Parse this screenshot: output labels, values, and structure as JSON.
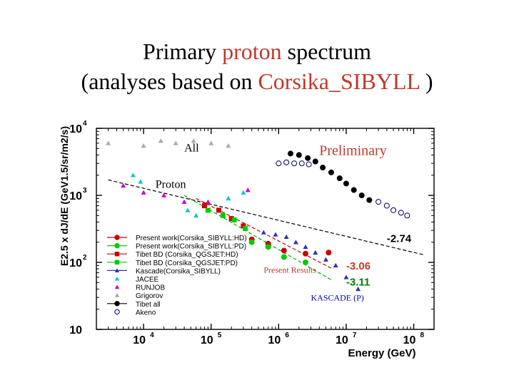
{
  "title": {
    "line1_prefix": "Primary ",
    "line1_accent": "proton",
    "line1_suffix": " spectrum",
    "line2_prefix": "(analyses based on ",
    "line2_accent": "Corsika_SIBYLL",
    "line2_suffix": " )"
  },
  "colors": {
    "accent": "#c0392b"
  },
  "chart_data": {
    "type": "scatter",
    "xlabel": "Energy (GeV)",
    "ylabel": "E2.5 x dJ/dE (GeV1.5/sr/m2/s)",
    "xscale": "log",
    "yscale": "log",
    "xlim": [
      2000,
      200000000
    ],
    "ylim": [
      10,
      10000
    ],
    "x_ticks": [
      {
        "value": 10000,
        "base": "10",
        "exp": "4"
      },
      {
        "value": 100000,
        "base": "10",
        "exp": "5"
      },
      {
        "value": 1000000,
        "base": "10",
        "exp": "6"
      },
      {
        "value": 10000000,
        "base": "10",
        "exp": "7"
      },
      {
        "value": 100000000,
        "base": "10",
        "exp": "8"
      }
    ],
    "y_ticks": [
      {
        "value": 10,
        "base": "10",
        "exp": ""
      },
      {
        "value": 100,
        "base": "10",
        "exp": "2"
      },
      {
        "value": 1000,
        "base": "10",
        "exp": "3"
      },
      {
        "value": 10000,
        "base": "10",
        "exp": "4"
      }
    ],
    "annotations": [
      {
        "text": "All",
        "x": 40000,
        "y": 4500,
        "color": "#000000"
      },
      {
        "text": "Preliminary",
        "x": 4000000,
        "y": 4000,
        "color": "#c0392b"
      },
      {
        "text": "Proton",
        "x": 15000,
        "y": 1300,
        "color": "#000000"
      },
      {
        "text": "-2.74",
        "x": 40000000,
        "y": 200,
        "color": "#000000"
      },
      {
        "text": "Present Results",
        "x": 600000,
        "y": 70,
        "color": "#c0392b"
      },
      {
        "text": "-3.06",
        "x": 10000000,
        "y": 78,
        "color": "#c0392b"
      },
      {
        "text": "-3.11",
        "x": 10000000,
        "y": 45,
        "color": "#008000"
      },
      {
        "text": "KASCADE (P)",
        "x": 3000000,
        "y": 27,
        "color": "#0000cc"
      }
    ],
    "fit_lines": [
      {
        "label": "-2.74",
        "color": "#000000",
        "dash": "5,3",
        "points": [
          [
            3000,
            1700
          ],
          [
            140000000,
            130
          ]
        ]
      },
      {
        "label": "-3.06",
        "color": "#cc0000",
        "dash": "5,3",
        "points": [
          [
            60000,
            900
          ],
          [
            6000000,
            82
          ]
        ]
      },
      {
        "label": "-3.11",
        "color": "#00aa00",
        "dash": "5,3",
        "points": [
          [
            40000,
            1000
          ],
          [
            6000000,
            55
          ]
        ]
      }
    ],
    "legend": {
      "placement": "bottom-left",
      "entries": [
        {
          "label": "Present work(Corsika_SIBYLL:HD)",
          "color": "#cc0000",
          "marker": "circle",
          "line": true
        },
        {
          "label": "Present work(Corsika_SIBYLL:PD)",
          "color": "#00cc00",
          "marker": "circle",
          "line": true
        },
        {
          "label": "Tibet BD (Corsika_QGSJET:HD)",
          "color": "#cc0000",
          "marker": "square",
          "line": true
        },
        {
          "label": "Tibet BD (Corsika_QGSJET:PD)",
          "color": "#00cc00",
          "marker": "square",
          "line": true
        },
        {
          "label": "Kascade(Corsika_SIBYLL)",
          "color": "#3333aa",
          "marker": "triangle",
          "line": true
        },
        {
          "label": "JACEE",
          "color": "#00cccc",
          "marker": "triangle",
          "line": false
        },
        {
          "label": "RUNJOB",
          "color": "#cc00cc",
          "marker": "triangle",
          "line": false
        },
        {
          "label": "Grigorov",
          "color": "#aaaaaa",
          "marker": "triangle",
          "line": false
        },
        {
          "label": "Tibet all",
          "color": "#000000",
          "marker": "circle",
          "line": true
        },
        {
          "label": "Akeno",
          "color": "#000066",
          "marker": "open-circle",
          "line": false
        }
      ]
    },
    "series": [
      {
        "name": "Grigorov",
        "color": "#aaaaaa",
        "marker": "triangle",
        "x": [
          3000,
          10000,
          18000,
          30000,
          55000,
          100000,
          180000
        ],
        "y": [
          6000,
          5500,
          6500,
          6000,
          6500,
          6000,
          5500
        ]
      },
      {
        "name": "Tibet all",
        "color": "#000000",
        "marker": "circle",
        "x": [
          1500000,
          2000000,
          2700000,
          3500000,
          4500000,
          6000000,
          8000000,
          10000000,
          13000000,
          17000000,
          22000000
        ],
        "y": [
          4200,
          4000,
          3600,
          3200,
          2600,
          2200,
          1800,
          1500,
          1200,
          1000,
          850
        ]
      },
      {
        "name": "Akeno",
        "color": "#000066",
        "marker": "open-circle",
        "x": [
          1000000,
          1300000,
          1700000,
          2200000,
          2800000,
          30000000,
          40000000,
          50000000,
          65000000,
          80000000
        ],
        "y": [
          3000,
          3100,
          3000,
          3000,
          2900,
          800,
          700,
          600,
          550,
          500
        ]
      },
      {
        "name": "JACEE",
        "color": "#00cccc",
        "marker": "triangle",
        "x": [
          7000,
          9000,
          45000,
          60000,
          180000,
          300000
        ],
        "y": [
          2000,
          1600,
          600,
          500,
          900,
          1100
        ]
      },
      {
        "name": "RUNJOB",
        "color": "#cc00cc",
        "marker": "triangle",
        "x": [
          5000,
          10000,
          20000,
          40000,
          90000,
          350000
        ],
        "y": [
          1400,
          1100,
          1000,
          800,
          800,
          1200
        ]
      },
      {
        "name": "Tibet BD (Corsika_QGSJET:HD)",
        "color": "#cc0000",
        "marker": "square",
        "x": [
          80000,
          130000,
          200000,
          300000
        ],
        "y": [
          700,
          600,
          450,
          350
        ]
      },
      {
        "name": "Tibet BD (Corsika_QGSJET:PD)",
        "color": "#00cc00",
        "marker": "square",
        "x": [
          90000,
          150000,
          220000,
          320000
        ],
        "y": [
          600,
          500,
          430,
          320
        ]
      },
      {
        "name": "Present work(Corsika_SIBYLL:HD)",
        "color": "#cc0000",
        "marker": "circle",
        "x": [
          400000,
          700000,
          1200000,
          2500000,
          5500000
        ],
        "y": [
          220,
          190,
          150,
          135,
          140
        ]
      },
      {
        "name": "Present work(Corsika_SIBYLL:PD)",
        "color": "#00cc00",
        "marker": "circle",
        "x": [
          400000,
          700000,
          1200000,
          2500000
        ],
        "y": [
          200,
          170,
          120,
          100
        ]
      },
      {
        "name": "Kascade(Corsika_SIBYLL)",
        "color": "#3333aa",
        "marker": "triangle",
        "x": [
          600000,
          900000,
          1300000,
          1800000,
          2500000,
          3500000,
          5000000,
          7000000,
          10000000,
          15000000
        ],
        "y": [
          280,
          260,
          240,
          200,
          170,
          140,
          110,
          90,
          60,
          40
        ]
      }
    ]
  }
}
